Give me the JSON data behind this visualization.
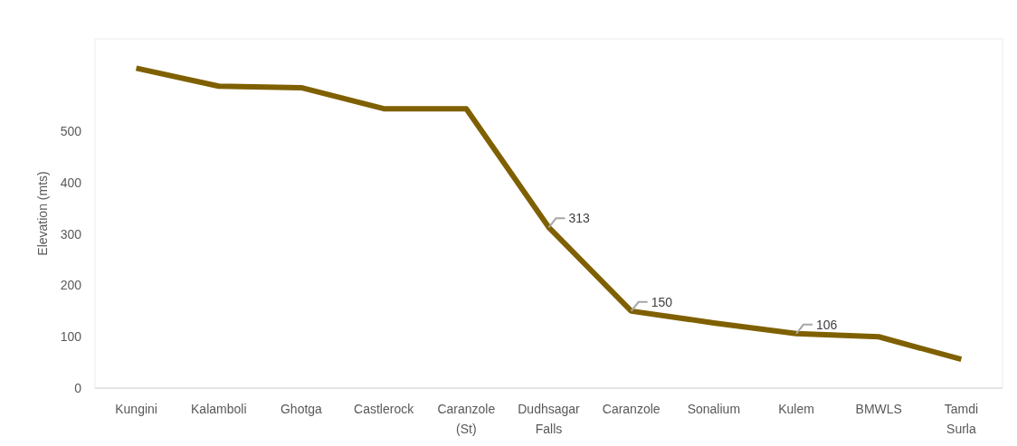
{
  "chart_data": {
    "type": "line",
    "ylabel": "Elevation (mts)",
    "categories": [
      "Kungini",
      "Kalamboli",
      "Ghotga",
      "Castlerock",
      "Caranzole (St)",
      "Dudhsagar Falls",
      "Caranzole",
      "Sonalium",
      "Kulem",
      "BMWLS",
      "Tamdi Surla"
    ],
    "series": [
      {
        "color": "#7f6000",
        "values": [
          623,
          588,
          585,
          544,
          544,
          313,
          150,
          127,
          106,
          100,
          56
        ],
        "value_labels": [
          null,
          null,
          null,
          null,
          null,
          "313",
          "150",
          null,
          "106",
          null,
          null
        ]
      }
    ],
    "ylim": [
      0,
      680
    ],
    "yticks": [
      0,
      100,
      200,
      300,
      400,
      500
    ],
    "grid": false,
    "marker": "none",
    "line_style": "solid"
  }
}
